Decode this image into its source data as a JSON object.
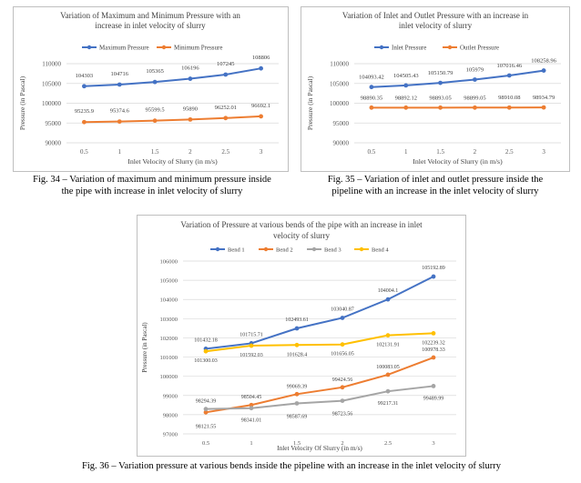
{
  "chart_data": [
    {
      "type": "line",
      "title": "Variation of Maximum and Minimum Pressure with an increase in inlet velocity of slurry",
      "title_lines": [
        "Variation of Maximum and Minimum Pressure with an",
        "increase in inlet velocity of slurry"
      ],
      "xlabel": "Inlet Velocity of Slurry (in m/s)",
      "ylabel": "Pressure (in Pascal)",
      "x": [
        "0.5",
        "1",
        "1.5",
        "2",
        "2.5",
        "3"
      ],
      "ylim": [
        90000,
        110000
      ],
      "yticks": [
        "90000",
        "95000",
        "100000",
        "105000",
        "110000"
      ],
      "grid": true,
      "legend": "top",
      "series": [
        {
          "name": "Maximum Pressure",
          "color": "#4472C4",
          "values": [
            104303,
            104716,
            105365,
            106196,
            107245,
            108806
          ],
          "labels": [
            "104303",
            "104716",
            "105365",
            "106196",
            "107245",
            "108806"
          ]
        },
        {
          "name": "Minimum Pressure",
          "color": "#ED7D31",
          "values": [
            95235.9,
            95374.6,
            95599.5,
            95890,
            96252.01,
            96692.1
          ],
          "labels": [
            "95235.9",
            "95374.6",
            "95599.5",
            "95890",
            "96252.01",
            "96692.1"
          ]
        }
      ]
    },
    {
      "type": "line",
      "title": "Variation of Inlet and Outlet Pressure with an increase in inlet velocity of slurry",
      "title_lines": [
        "Variation of Inlet and Outlet Pressure with an increase in",
        "inlet velocity of slurry"
      ],
      "xlabel": "Inlet Velocity of Slurry (in m/s)",
      "ylabel": "Pressure (in Pascal)",
      "x": [
        "0.5",
        "1",
        "1.5",
        "2",
        "2.5",
        "3"
      ],
      "ylim": [
        90000,
        110000
      ],
      "yticks": [
        "90000",
        "95000",
        "100000",
        "105000",
        "110000"
      ],
      "grid": true,
      "legend": "top",
      "series": [
        {
          "name": "Inlet Pressure",
          "color": "#4472C4",
          "values": [
            104093.42,
            104505.43,
            105150.79,
            105979,
            107016.46,
            108258.96
          ],
          "labels": [
            "104093.42",
            "104505.43",
            "105150.79",
            "105979",
            "107016.46",
            "108258.96"
          ]
        },
        {
          "name": "Outlet Pressure",
          "color": "#ED7D31",
          "values": [
            98890.35,
            98892.12,
            98893.05,
            98899.05,
            98910.08,
            98934.79
          ],
          "labels": [
            "98890.35",
            "98892.12",
            "98893.05",
            "98899.05",
            "98910.08",
            "98934.79"
          ]
        }
      ]
    },
    {
      "type": "line",
      "title": "Variation of Pressure at various bends of the pipe with an increase in inlet velocity of slurry",
      "title_lines": [
        "Variation of Pressure at various bends of the pipe with an increase in inlet",
        "velocity of slurry"
      ],
      "xlabel": "Inlet Velocity Of Slurry (in m/s)",
      "ylabel": "Pressure (in Pascal)",
      "x": [
        "0.5",
        "1",
        "1.5",
        "2",
        "2.5",
        "3"
      ],
      "ylim": [
        97000,
        106000
      ],
      "yticks": [
        "97000",
        "98000",
        "99000",
        "100000",
        "101000",
        "102000",
        "103000",
        "104000",
        "105000",
        "106000"
      ],
      "grid": true,
      "legend": "top",
      "series": [
        {
          "name": "Bend 1",
          "color": "#4472C4",
          "values": [
            101432.18,
            101715.71,
            102493.61,
            103040.87,
            104004.1,
            105192.89
          ],
          "labels": [
            "101432.18",
            "101715.71",
            "102493.61",
            "103040.87",
            "104004.1",
            "105192.89"
          ]
        },
        {
          "name": "Bend 2",
          "color": "#ED7D31",
          "values": [
            98121.55,
            98504.45,
            99069.39,
            99424.56,
            100083.05,
            100978.33
          ],
          "labels": [
            "98121.55",
            "98504.45",
            "99069.39",
            "99424.56",
            "100083.05",
            "100978.33"
          ]
        },
        {
          "name": "Bend 3",
          "color": "#A5A5A5",
          "values": [
            98294.39,
            98341.01,
            98587.69,
            98723.56,
            99217.31,
            99489.99
          ],
          "labels": [
            "98294.39",
            "98341.01",
            "98587.69",
            "98723.56",
            "99217.31",
            "99489.99"
          ]
        },
        {
          "name": "Bend 4",
          "color": "#FFC000",
          "values": [
            101300.03,
            101592.03,
            101628.4,
            101656.05,
            102131.91,
            102239.32
          ],
          "labels": [
            "101300.03",
            "101592.03",
            "101628.4",
            "101656.05",
            "102131.91",
            "102239.32"
          ]
        }
      ]
    }
  ],
  "captions": {
    "fig34": [
      "Fig. 34 – Variation of maximum and minimum pressure inside",
      "the pipe with increase in inlet velocity of slurry"
    ],
    "fig35": [
      "Fig. 35 – Variation of inlet and outlet pressure inside the",
      "pipeline with an increase in the inlet velocity of slurry"
    ],
    "fig36": [
      "Fig. 36 – Variation pressure at various bends inside the pipeline with an increase in the inlet velocity of slurry"
    ]
  }
}
